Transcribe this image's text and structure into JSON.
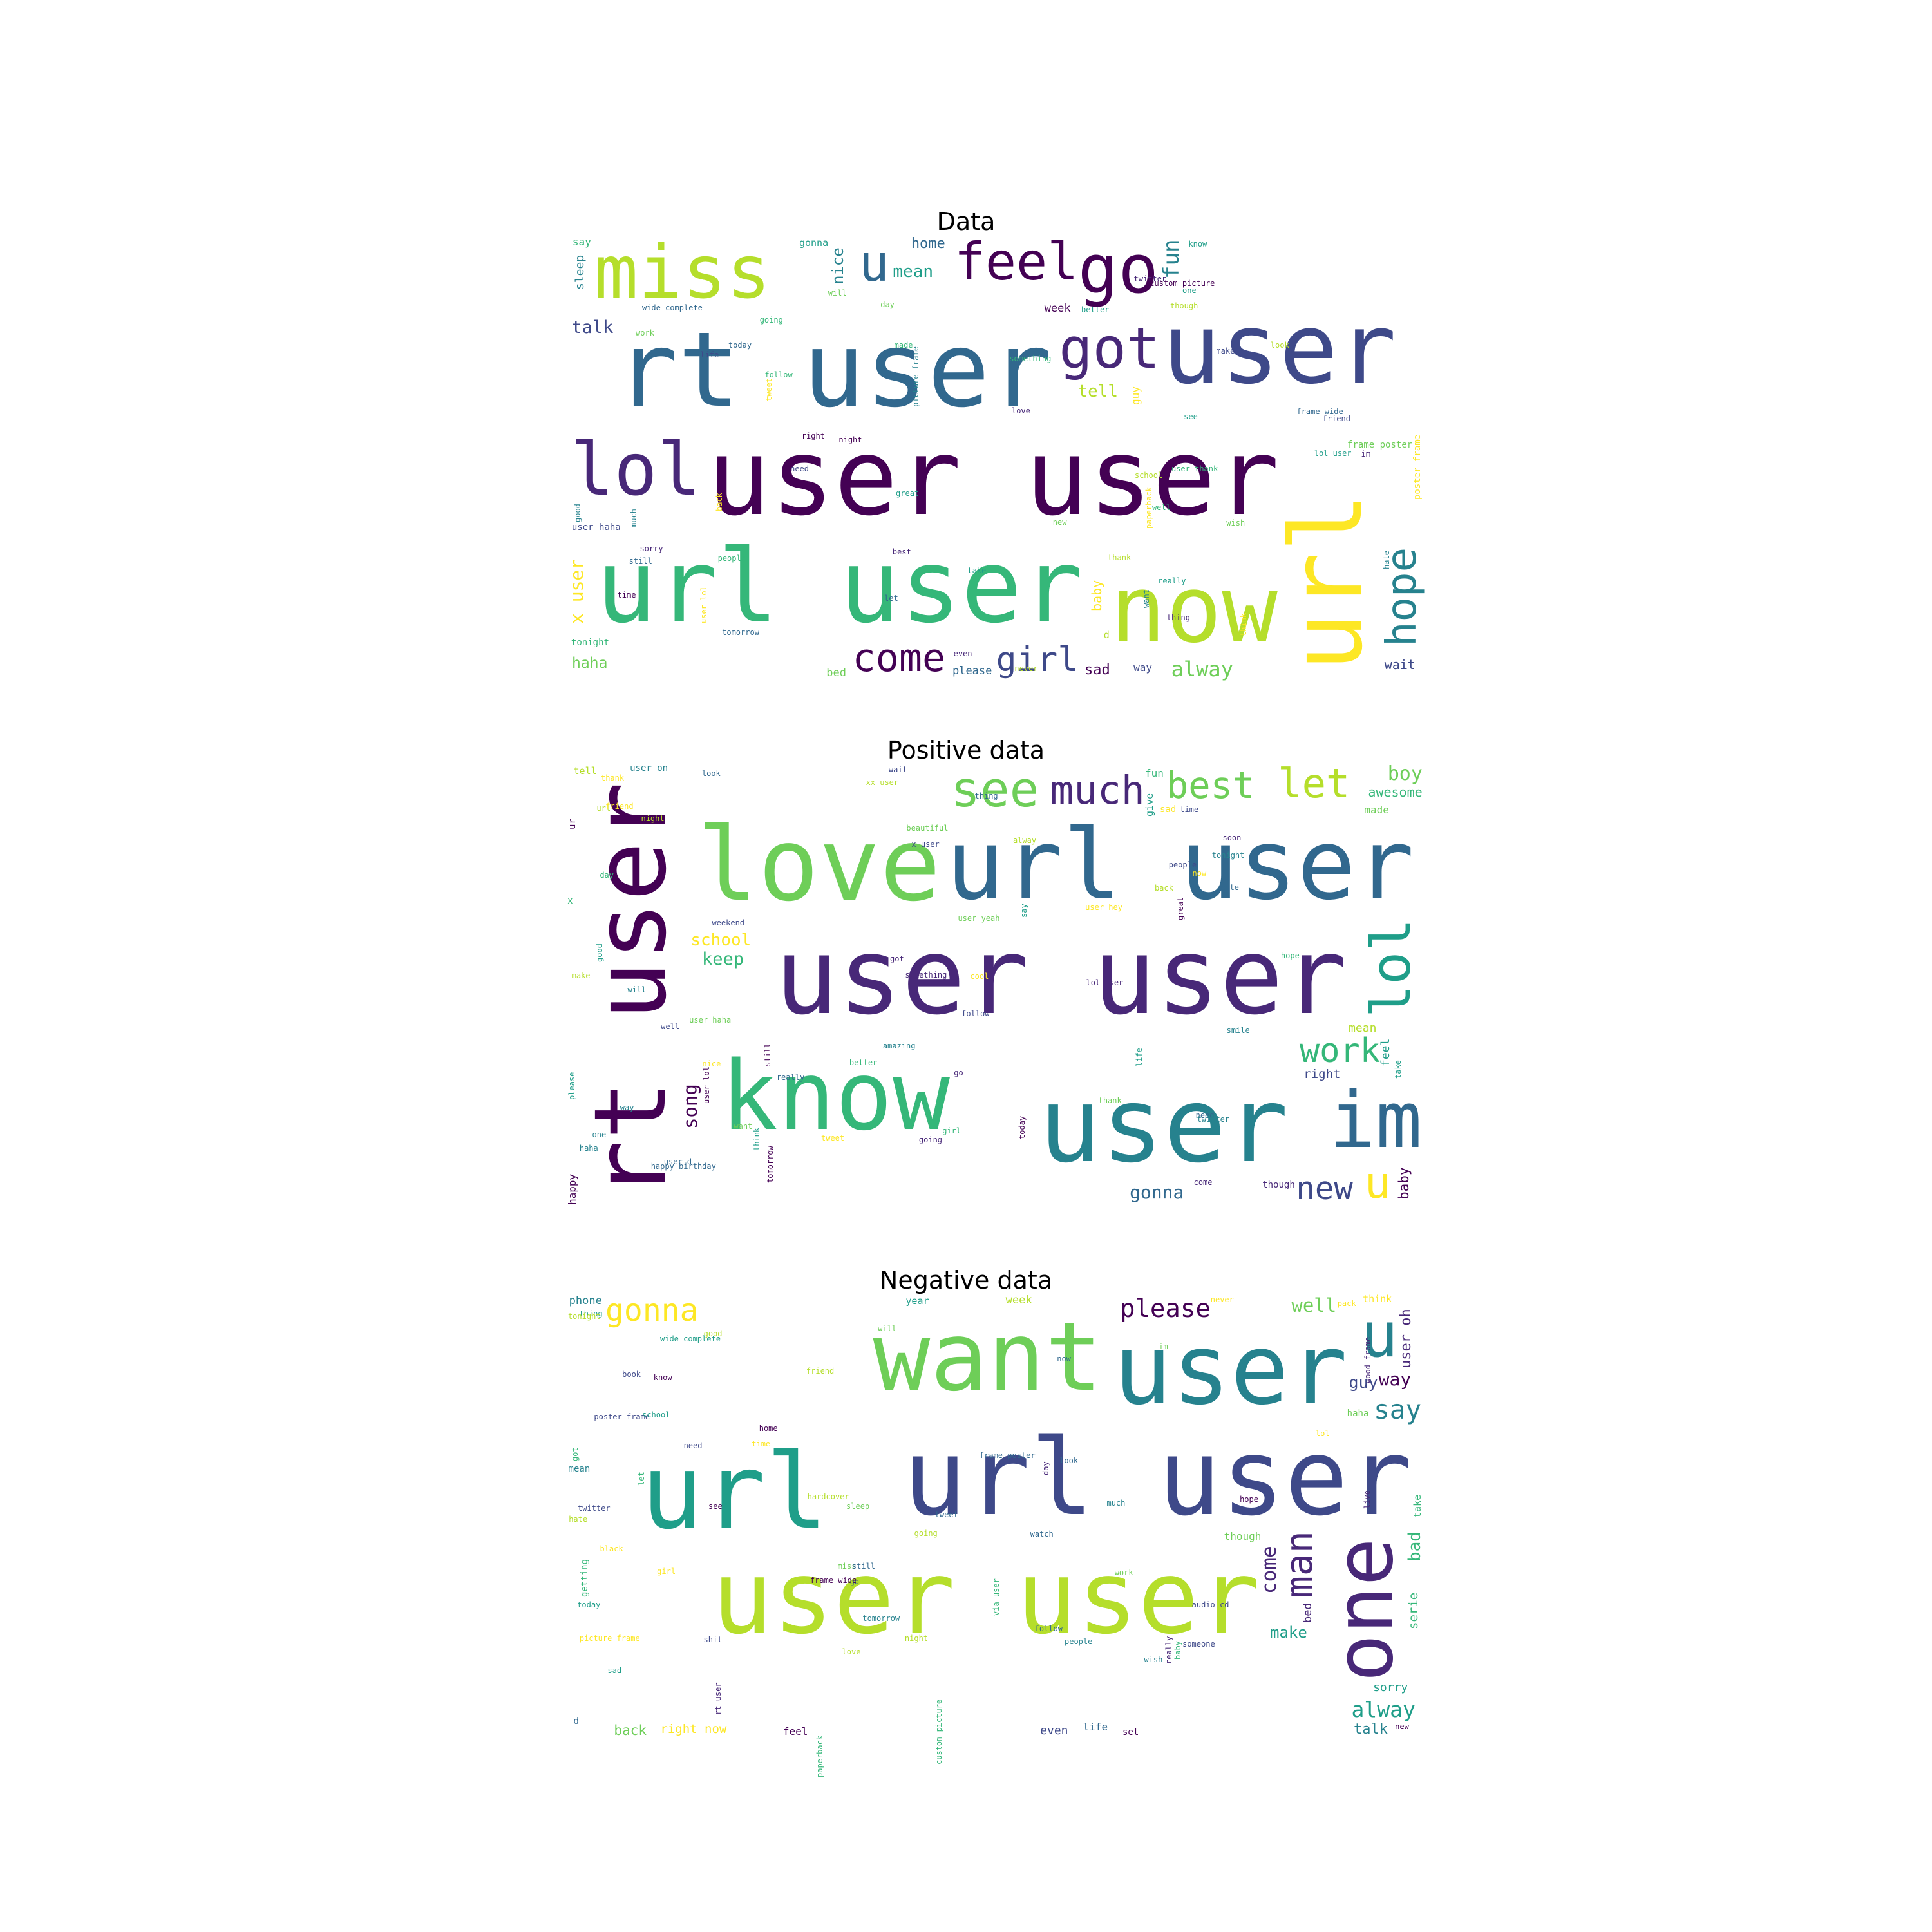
{
  "palette": [
    "#440154",
    "#482878",
    "#3e4989",
    "#31688e",
    "#26828e",
    "#1f9e89",
    "#35b779",
    "#6ece58",
    "#b5de2b",
    "#fde725"
  ],
  "panels": [
    {
      "title": "Data",
      "words": [
        "user user",
        "rt user",
        "url user",
        "url",
        "user",
        "know",
        "now",
        "love",
        "want",
        "will",
        "time",
        "today",
        "going",
        "think",
        "make",
        "see",
        "miss",
        "lol",
        "good",
        "day",
        "go",
        "still",
        "follow",
        "back",
        "need",
        "one",
        "thank",
        "got",
        "much",
        "work",
        "feel",
        "u",
        "people",
        "tweet",
        "life",
        "really",
        "look",
        "im",
        "hope",
        "wish",
        "come",
        "tomorrow",
        "user thank",
        "user lol",
        "girl",
        "great",
        "school",
        "best",
        "hate",
        "new",
        "night",
        "let",
        "well",
        "paperback",
        "friend",
        "take",
        "though",
        "sorry",
        "fun",
        "alway",
        "right",
        "frame wide",
        "something",
        "x user",
        "talk",
        "mean",
        "tell",
        "even",
        "nice",
        "haha",
        "sad",
        "home",
        "made",
        "baby",
        "wait",
        "better",
        "never",
        "twitter",
        "sleep",
        "bed",
        "week",
        "please",
        "say",
        "guy",
        "way",
        "gonna",
        "d",
        "thing",
        "picture frame",
        "frame poster",
        "custom picture",
        "wide complete",
        "tonight",
        "poster frame",
        "user haha",
        "lol user"
      ]
    },
    {
      "title": "Positive data",
      "words": [
        "user user",
        "user",
        "love",
        "rt user",
        "url user",
        "know",
        "thank",
        "follow",
        "think",
        "make",
        "got",
        "will",
        "want",
        "today",
        "im",
        "girl",
        "now",
        "time",
        "good",
        "back",
        "going",
        "one",
        "thank",
        "tomorrow",
        "need",
        "day",
        "tweet",
        "people",
        "lol",
        "url",
        "go",
        "haha",
        "see",
        "still",
        "look",
        "hope",
        "u",
        "well",
        "say",
        "let",
        "much",
        "tonight",
        "best",
        "great",
        "user d",
        "work",
        "nice",
        "new",
        "please",
        "alway",
        "come",
        "way",
        "user haha",
        "user lol",
        "really",
        "better",
        "friend",
        "x user",
        "take",
        "xx user",
        "lol user",
        "amazing",
        "boy",
        "song",
        "gonna",
        "keep",
        "school",
        "wait",
        "life",
        "night",
        "soon",
        "smile",
        "beautiful",
        "baby",
        "thing",
        "awesome",
        "cool",
        "right",
        "feel",
        "mean",
        "something",
        "twitter",
        "made",
        "happy",
        "cute",
        "fun",
        "user hey",
        "weekend",
        "give",
        "tell",
        "though",
        "user on",
        "user yeah",
        "ur",
        "happy birthday",
        "x",
        "sad"
      ]
    },
    {
      "title": "Negative data",
      "words": [
        "url user",
        "url",
        "user user",
        "rt user",
        "user",
        "want",
        "know",
        "now",
        "paperback",
        "picture frame",
        "poster frame",
        "wide complete",
        "love",
        "one",
        "wish",
        "miss",
        "see",
        "go",
        "got",
        "time",
        "need",
        "today",
        "going",
        "day",
        "u",
        "will",
        "frame wide",
        "frame poster",
        "custom picture",
        "black",
        "book",
        "school",
        "friend",
        "really",
        "much",
        "work",
        "home",
        "watch",
        "via user",
        "lol",
        "shit",
        "sad",
        "good",
        "man",
        "people",
        "sleep",
        "hope",
        "look",
        "let",
        "gonna",
        "someone",
        "thing",
        "hate",
        "live",
        "say",
        "im",
        "please",
        "still",
        "baby",
        "never",
        "audio cd",
        "alway",
        "night",
        "come",
        "tomorrow",
        "well",
        "way",
        "tweet",
        "bad",
        "girl",
        "guy",
        "make",
        "tonight",
        "user oh",
        "talk",
        "back",
        "new",
        "follow",
        "serie",
        "right now",
        "even",
        "sorry",
        "week",
        "bed",
        "phone",
        "though",
        "feel",
        "life",
        "take",
        "think",
        "twitter",
        "year",
        "hardcover",
        "wood frame",
        "mean",
        "haha",
        "set",
        "d",
        "getting",
        "pack"
      ]
    }
  ]
}
